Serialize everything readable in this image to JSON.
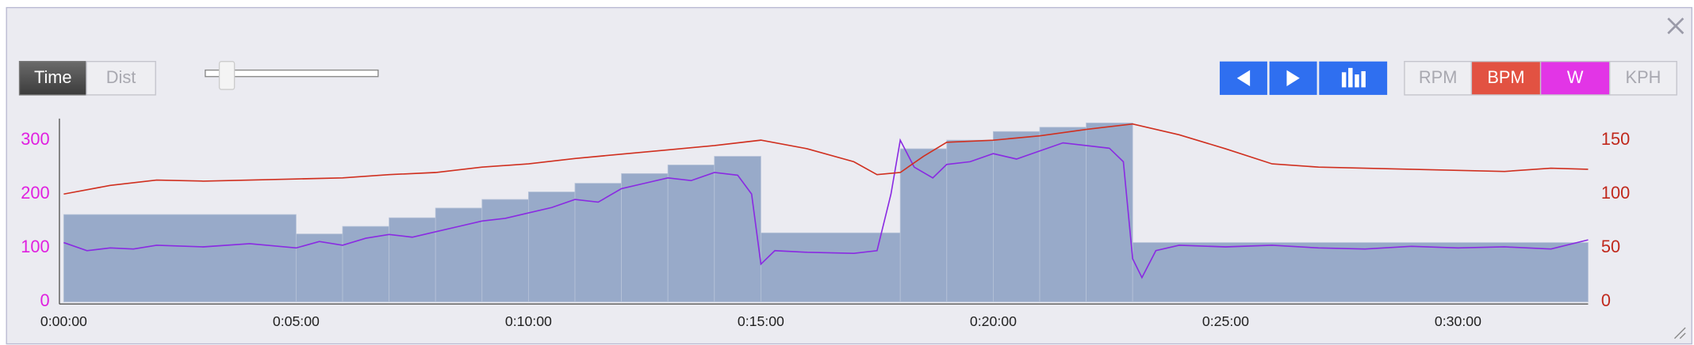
{
  "controls": {
    "modes": [
      "Time",
      "Dist"
    ],
    "toggles": [
      "RPM",
      "BPM",
      "W",
      "KPH"
    ]
  },
  "chart_data": {
    "type": "line",
    "xlim": [
      0,
      32.8
    ],
    "xticks": [
      {
        "value": 0,
        "label": "0:00:00"
      },
      {
        "value": 5,
        "label": "0:05:00"
      },
      {
        "value": 10,
        "label": "0:10:00"
      },
      {
        "value": 15,
        "label": "0:15:00"
      },
      {
        "value": 20,
        "label": "0:20:00"
      },
      {
        "value": 25,
        "label": "0:25:00"
      },
      {
        "value": 30,
        "label": "0:30:00"
      }
    ],
    "ylim": [
      0,
      340
    ],
    "yticks": [
      0,
      100,
      200,
      300
    ],
    "ytick_color": "#e020e0",
    "y2lim": [
      0,
      170
    ],
    "y2ticks": [
      0,
      50,
      100,
      150
    ],
    "y2tick_color": "#c0281c",
    "blocks": {
      "color": "#8fa3c4",
      "bins": [
        0,
        5,
        6,
        7,
        8,
        9,
        10,
        11,
        12,
        13,
        14,
        15,
        18,
        19,
        20,
        21,
        22,
        23,
        32.8
      ],
      "values": [
        162,
        126,
        140,
        156,
        174,
        190,
        204,
        220,
        238,
        254,
        270,
        128,
        284,
        300,
        316,
        324,
        332,
        110
      ]
    },
    "series": [
      {
        "color": "#8a2be2",
        "x": [
          0,
          0.5,
          1,
          1.5,
          2,
          3,
          4,
          5,
          5.5,
          6,
          6.5,
          7,
          7.5,
          8,
          8.5,
          9,
          9.5,
          10,
          10.5,
          11,
          11.5,
          12,
          12.5,
          13,
          13.5,
          14,
          14.5,
          14.8,
          15,
          15.3,
          16,
          17,
          17.5,
          17.8,
          18,
          18.3,
          18.7,
          19,
          19.5,
          20,
          20.5,
          21,
          21.5,
          22,
          22.5,
          22.8,
          23,
          23.2,
          23.5,
          24,
          25,
          26,
          27,
          28,
          29,
          30,
          31,
          32,
          32.8
        ],
        "values": [
          110,
          95,
          100,
          98,
          105,
          102,
          108,
          100,
          112,
          105,
          118,
          125,
          120,
          130,
          140,
          150,
          155,
          165,
          175,
          190,
          185,
          210,
          220,
          230,
          225,
          240,
          235,
          200,
          70,
          95,
          92,
          90,
          95,
          200,
          300,
          250,
          230,
          255,
          260,
          275,
          265,
          280,
          295,
          290,
          285,
          260,
          80,
          45,
          95,
          105,
          102,
          105,
          100,
          98,
          103,
          100,
          102,
          98,
          115
        ]
      },
      {
        "color": "#d03020",
        "axis": "y2",
        "x": [
          0,
          1,
          2,
          3,
          4,
          5,
          6,
          7,
          8,
          9,
          10,
          11,
          12,
          13,
          14,
          15,
          16,
          17,
          17.5,
          18,
          18.5,
          19,
          20,
          21,
          22,
          23,
          24,
          25,
          26,
          27,
          28,
          29,
          30,
          31,
          32,
          32.8
        ],
        "values": [
          100,
          108,
          113,
          112,
          113,
          114,
          115,
          118,
          120,
          125,
          128,
          133,
          137,
          141,
          145,
          150,
          142,
          130,
          118,
          120,
          135,
          148,
          150,
          154,
          160,
          165,
          155,
          142,
          128,
          125,
          124,
          123,
          122,
          121,
          124,
          123
        ]
      }
    ]
  }
}
